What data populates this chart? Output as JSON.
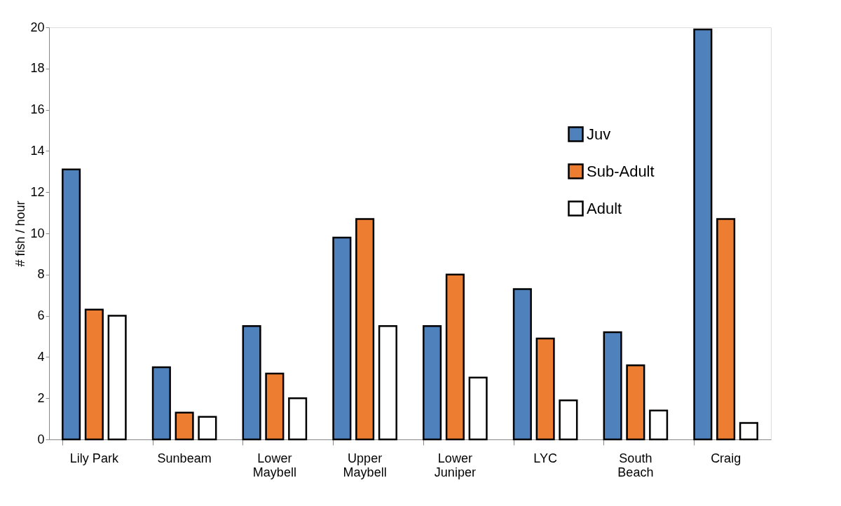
{
  "chart_data": {
    "type": "bar",
    "ylabel": "# fish / hour",
    "categories": [
      "Lily Park",
      "Sunbeam",
      "Lower Maybell",
      "Upper Maybell",
      "Lower Juniper",
      "LYC",
      "South Beach",
      "Craig"
    ],
    "series": [
      {
        "name": "Juv",
        "color": "#4f81bd",
        "values": [
          13.1,
          3.5,
          5.5,
          9.8,
          5.5,
          7.3,
          5.2,
          19.9
        ]
      },
      {
        "name": "Sub-Adult",
        "color": "#ed7d31",
        "values": [
          6.3,
          1.3,
          3.2,
          10.7,
          8.0,
          4.9,
          3.6,
          10.7
        ]
      },
      {
        "name": "Adult",
        "color": "#ffffff",
        "values": [
          6.0,
          1.1,
          2.0,
          5.5,
          3.0,
          1.9,
          1.4,
          0.8
        ]
      }
    ],
    "ylim": [
      0,
      20
    ],
    "yticks": [
      0,
      2,
      4,
      6,
      8,
      10,
      12,
      14,
      16,
      18,
      20
    ],
    "grid": false,
    "legend": "right"
  }
}
